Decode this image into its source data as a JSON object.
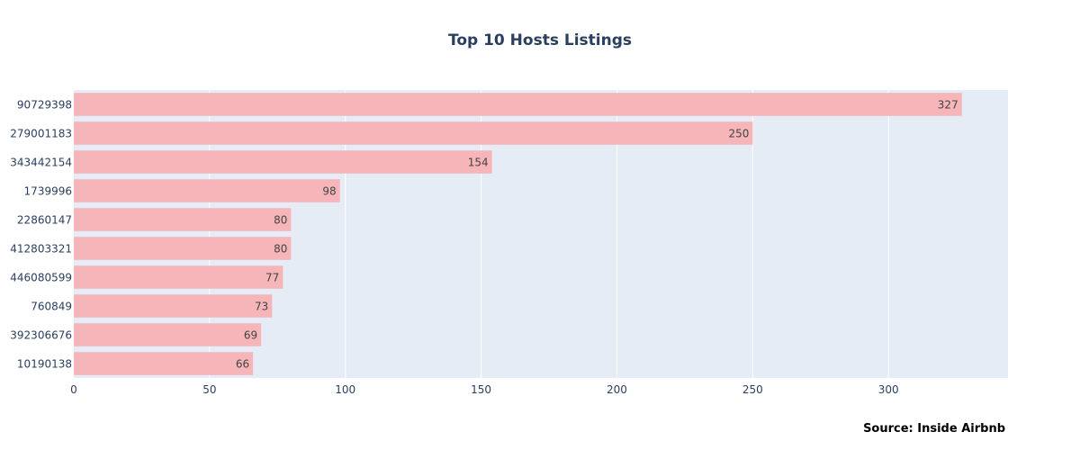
{
  "chart_data": {
    "type": "bar",
    "orientation": "horizontal",
    "title": "Top 10 Hosts Listings",
    "xlabel": "",
    "ylabel": "",
    "categories": [
      "90729398",
      "279001183",
      "343442154",
      "1739996",
      "22860147",
      "412803321",
      "446080599",
      "760849",
      "392306676",
      "10190138"
    ],
    "values": [
      327,
      250,
      154,
      98,
      80,
      80,
      77,
      73,
      69,
      66
    ],
    "xlim": [
      0,
      344
    ],
    "x_ticks": [
      0,
      50,
      100,
      150,
      200,
      250,
      300
    ],
    "grid": true,
    "legend": "none",
    "bar_color": "#f6b5b9",
    "plot_background": "#e5ecf6",
    "annotation": "Source: Inside Airbnb"
  }
}
